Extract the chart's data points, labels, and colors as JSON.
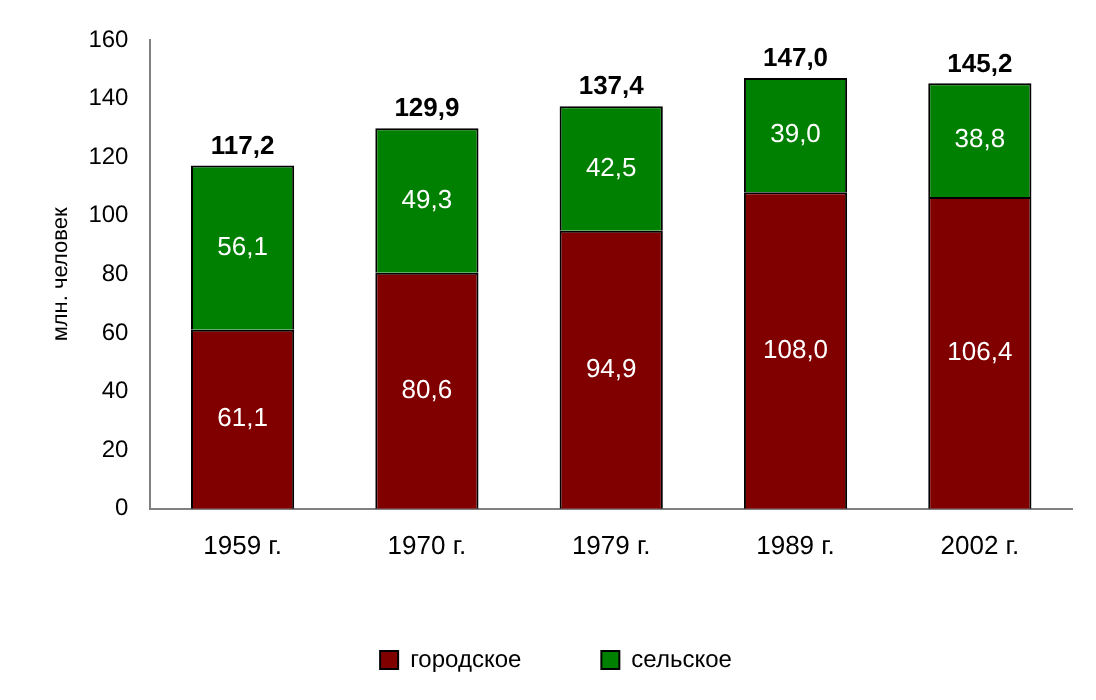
{
  "chart_data": {
    "type": "bar",
    "stacked": true,
    "ylabel": "млн. человек",
    "categories": [
      "1959 г.",
      "1970 г.",
      "1979 г.",
      "1989 г.",
      "2002 г."
    ],
    "series": [
      {
        "name": "городское",
        "color": "#800000",
        "values": [
          61.1,
          80.6,
          94.9,
          108.0,
          106.4
        ],
        "value_labels": [
          "61,1",
          "80,6",
          "94,9",
          "108,0",
          "106,4"
        ]
      },
      {
        "name": "сельское",
        "color": "#008000",
        "values": [
          56.1,
          49.3,
          42.5,
          39.0,
          38.8
        ],
        "value_labels": [
          "56,1",
          "49,3",
          "42,5",
          "39,0",
          "38,8"
        ]
      }
    ],
    "totals": [
      "117,2",
      "129,9",
      "137,4",
      "147,0",
      "145,2"
    ],
    "ylim": [
      0,
      160
    ],
    "yticks": [
      0,
      20,
      40,
      60,
      80,
      100,
      120,
      140,
      160
    ],
    "grid": false,
    "legend": "bottom"
  }
}
